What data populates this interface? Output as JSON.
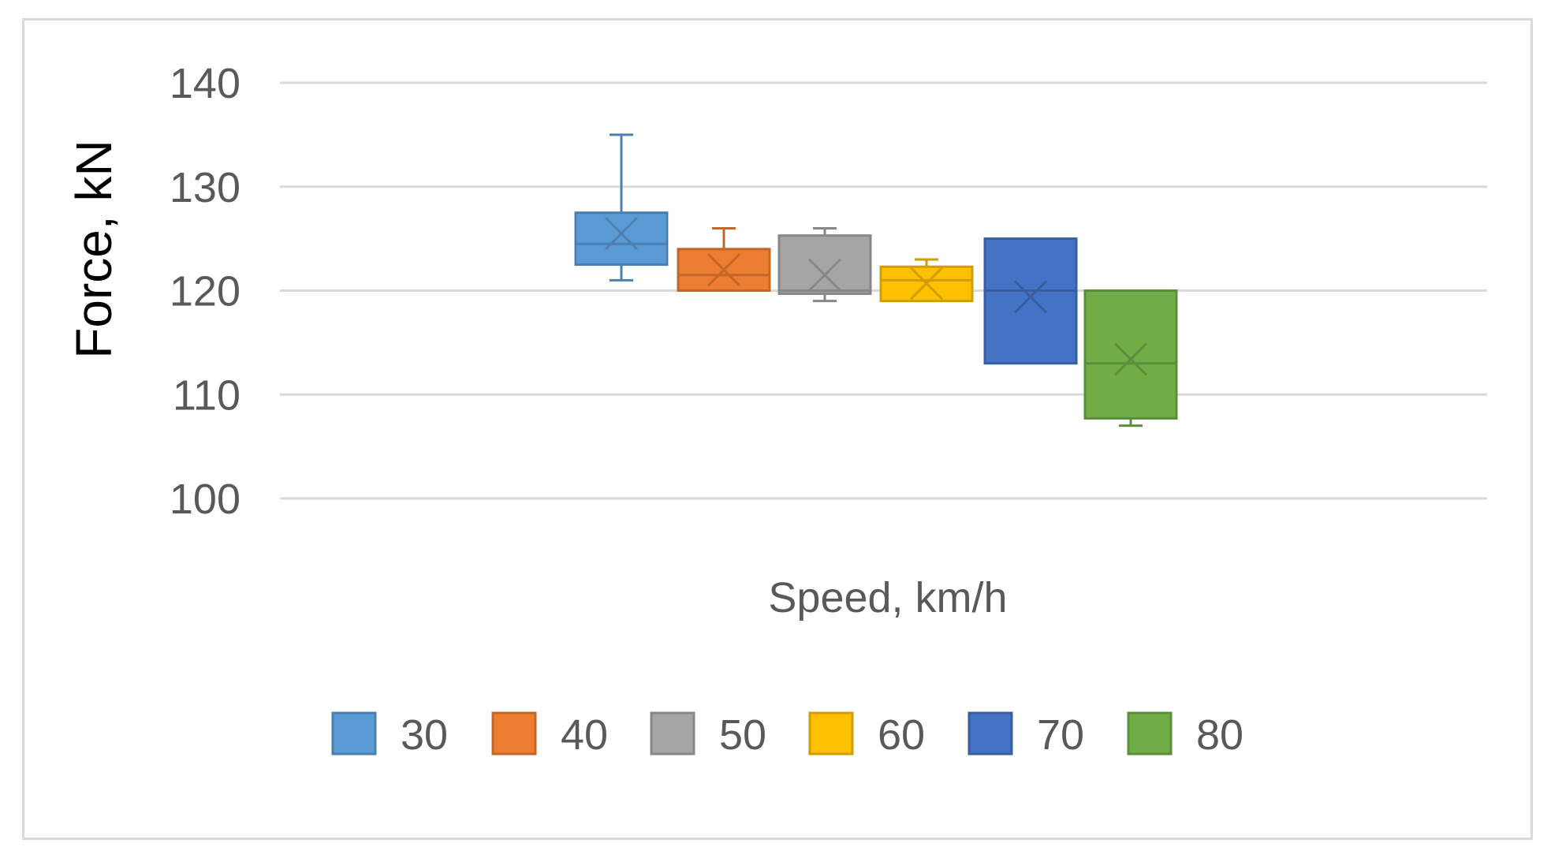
{
  "chart_data": {
    "type": "box",
    "title": "",
    "xlabel": "Speed, km/h",
    "ylabel": "Force, kN",
    "ylim": [
      100,
      140
    ],
    "yticks": [
      100,
      110,
      120,
      130,
      140
    ],
    "grid": true,
    "legend_position": "bottom",
    "series": [
      {
        "name": "30",
        "color": "#5b9bd5",
        "min": 121,
        "q1": 122.5,
        "median": 124.5,
        "mean": 125.5,
        "q3": 127.5,
        "max": 135
      },
      {
        "name": "40",
        "color": "#ed7d31",
        "min": 120,
        "q1": 120,
        "median": 121.5,
        "mean": 122,
        "q3": 124,
        "max": 126
      },
      {
        "name": "50",
        "color": "#a5a5a5",
        "min": 119,
        "q1": 119.7,
        "median": 120,
        "mean": 121.5,
        "q3": 125.3,
        "max": 126
      },
      {
        "name": "60",
        "color": "#ffc000",
        "min": 119,
        "q1": 119,
        "median": 121,
        "mean": 120.7,
        "q3": 122.3,
        "max": 123
      },
      {
        "name": "70",
        "color": "#4472c4",
        "min": 113,
        "q1": 113,
        "median": 120,
        "mean": 119.4,
        "q3": 125,
        "max": 125
      },
      {
        "name": "80",
        "color": "#70ad47",
        "min": 107,
        "q1": 107.7,
        "median": 113,
        "mean": 113.4,
        "q3": 120,
        "max": 120
      }
    ]
  }
}
